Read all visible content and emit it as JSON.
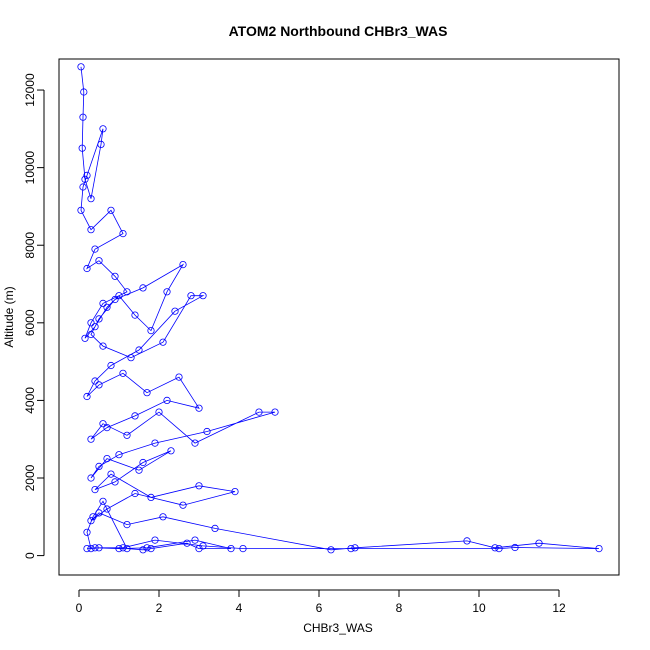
{
  "chart_data": {
    "type": "line",
    "title": "ATOM2 Northbound CHBr3_WAS",
    "xlabel": "CHBr3_WAS",
    "ylabel": "Altitude (m)",
    "xlim": [
      -0.5,
      13.5
    ],
    "ylim": [
      -500,
      12800
    ],
    "xticks": [
      0,
      2,
      4,
      6,
      8,
      10,
      12
    ],
    "yticks": [
      0,
      2000,
      4000,
      6000,
      8000,
      10000,
      12000
    ],
    "grid": false,
    "legend": "none",
    "color": "#0000ff",
    "marker": "open-circle",
    "series": [
      {
        "x": [
          0.05,
          0.12,
          0.1,
          0.08,
          0.15,
          0.3,
          0.55,
          0.6,
          0.2,
          0.1,
          0.05,
          0.3,
          0.8,
          1.1,
          0.4,
          0.2,
          0.5,
          0.9,
          1.2,
          0.6,
          0.3,
          0.15,
          0.4,
          0.7,
          1.0,
          1.4,
          1.8,
          2.2,
          2.6,
          1.6,
          0.9,
          0.5,
          0.3,
          0.6,
          1.3,
          2.1,
          2.8,
          3.1,
          2.4,
          1.5,
          0.8,
          0.4,
          0.2,
          0.5,
          1.1,
          1.7,
          2.5,
          3.0,
          2.2,
          1.4,
          0.7,
          0.3,
          0.6,
          1.2,
          2.0,
          2.9,
          4.5,
          4.9,
          3.2,
          1.9,
          1.0,
          0.5,
          0.3,
          0.7,
          1.5,
          2.3,
          1.6,
          0.9,
          0.4,
          0.8,
          1.8,
          3.0,
          3.9,
          2.6,
          1.4,
          0.7,
          0.3,
          0.5,
          1.2,
          2.1,
          3.4,
          6.3,
          6.9,
          9.7,
          10.4,
          11.5,
          13.0,
          10.9,
          10.5,
          6.8,
          4.1,
          3.1,
          1.9,
          1.1,
          0.5,
          0.3,
          0.2,
          0.35,
          0.6,
          1.2,
          1.6,
          1.8,
          2.7,
          3.0,
          3.8,
          2.9,
          1.7,
          1.0,
          0.4,
          0.2
        ],
        "y": [
          12600,
          11950,
          11300,
          10500,
          9700,
          9200,
          10600,
          11000,
          9800,
          9500,
          8900,
          8400,
          8900,
          8300,
          7900,
          7400,
          7600,
          7200,
          6800,
          6500,
          6000,
          5600,
          5900,
          6400,
          6700,
          6200,
          5800,
          6800,
          7500,
          6900,
          6600,
          6100,
          5700,
          5400,
          5100,
          5500,
          6700,
          6700,
          6300,
          5300,
          4900,
          4500,
          4100,
          4400,
          4700,
          4200,
          4600,
          3800,
          4000,
          3600,
          3300,
          3000,
          3400,
          3100,
          3700,
          2900,
          3700,
          3700,
          3200,
          2900,
          2600,
          2300,
          2000,
          2500,
          2200,
          2700,
          2400,
          1900,
          1700,
          2100,
          1500,
          1800,
          1650,
          1300,
          1600,
          1200,
          900,
          1100,
          800,
          1000,
          700,
          150,
          200,
          380,
          200,
          320,
          180,
          210,
          180,
          180,
          180,
          250,
          400,
          200,
          200,
          180,
          600,
          1000,
          1400,
          180,
          150,
          180,
          320,
          180,
          180,
          400,
          200,
          180,
          200,
          180
        ]
      }
    ]
  }
}
